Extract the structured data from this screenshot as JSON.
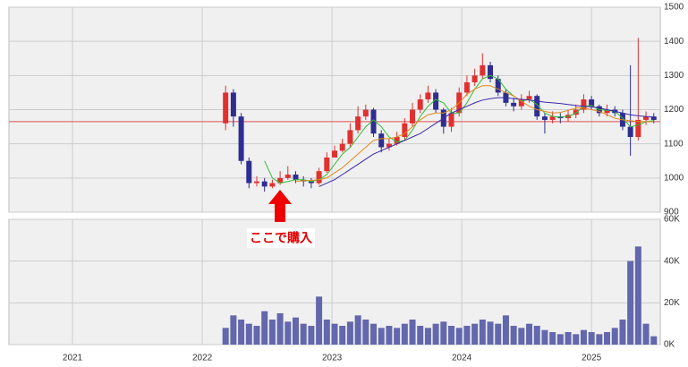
{
  "chart_data": [
    {
      "type": "candlestick",
      "xlim": [
        2020.51,
        2025.53
      ],
      "ylim": [
        900,
        1500
      ],
      "yticks": [
        900,
        1000,
        1100,
        1200,
        1300,
        1400,
        1500
      ],
      "up_color": "#e03030",
      "down_color": "#2e2e90",
      "reference_line": 1165,
      "reference_color": "#e05050",
      "annotation": "ここで購入",
      "annotation_x": 2022.6,
      "x": [
        2022.18,
        2022.24,
        2022.3,
        2022.36,
        2022.42,
        2022.48,
        2022.54,
        2022.6,
        2022.66,
        2022.72,
        2022.78,
        2022.84,
        2022.9,
        2022.96,
        2023.02,
        2023.08,
        2023.14,
        2023.2,
        2023.26,
        2023.32,
        2023.38,
        2023.44,
        2023.5,
        2023.56,
        2023.62,
        2023.68,
        2023.74,
        2023.8,
        2023.86,
        2023.92,
        2023.98,
        2024.04,
        2024.1,
        2024.16,
        2024.22,
        2024.28,
        2024.34,
        2024.4,
        2024.46,
        2024.52,
        2024.58,
        2024.64,
        2024.7,
        2024.76,
        2024.82,
        2024.88,
        2024.94,
        2025.0,
        2025.06,
        2025.12,
        2025.18,
        2025.24,
        2025.3,
        2025.36,
        2025.42,
        2025.48
      ],
      "open": [
        1160,
        1250,
        1180,
        1050,
        985,
        990,
        975,
        985,
        1000,
        1010,
        995,
        990,
        985,
        1020,
        1060,
        1080,
        1100,
        1140,
        1180,
        1200,
        1130,
        1090,
        1100,
        1120,
        1160,
        1200,
        1230,
        1250,
        1200,
        1150,
        1190,
        1250,
        1280,
        1300,
        1330,
        1290,
        1250,
        1220,
        1210,
        1230,
        1240,
        1180,
        1170,
        1180,
        1175,
        1185,
        1200,
        1230,
        1210,
        1190,
        1200,
        1190,
        1150,
        1120,
        1170,
        1180
      ],
      "high": [
        1270,
        1260,
        1190,
        1060,
        1005,
        1000,
        995,
        1020,
        1035,
        1020,
        1005,
        1000,
        1030,
        1075,
        1095,
        1115,
        1160,
        1210,
        1215,
        1205,
        1140,
        1115,
        1135,
        1175,
        1220,
        1245,
        1270,
        1260,
        1205,
        1205,
        1265,
        1300,
        1320,
        1365,
        1340,
        1300,
        1260,
        1235,
        1245,
        1255,
        1245,
        1190,
        1195,
        1190,
        1200,
        1215,
        1245,
        1240,
        1215,
        1215,
        1210,
        1200,
        1330,
        1410,
        1195,
        1190
      ],
      "low": [
        1140,
        1150,
        1040,
        970,
        975,
        960,
        970,
        980,
        995,
        985,
        975,
        970,
        980,
        1015,
        1060,
        1075,
        1090,
        1130,
        1170,
        1120,
        1075,
        1080,
        1095,
        1110,
        1150,
        1190,
        1220,
        1190,
        1130,
        1135,
        1180,
        1240,
        1270,
        1290,
        1280,
        1240,
        1210,
        1195,
        1200,
        1220,
        1170,
        1130,
        1160,
        1160,
        1165,
        1175,
        1190,
        1200,
        1180,
        1180,
        1180,
        1140,
        1065,
        1110,
        1155,
        1160
      ],
      "close": [
        1250,
        1180,
        1050,
        985,
        990,
        975,
        985,
        1000,
        1010,
        995,
        990,
        985,
        1020,
        1060,
        1080,
        1100,
        1140,
        1180,
        1200,
        1130,
        1090,
        1100,
        1120,
        1160,
        1200,
        1230,
        1250,
        1200,
        1150,
        1190,
        1250,
        1280,
        1300,
        1330,
        1290,
        1250,
        1220,
        1210,
        1230,
        1240,
        1180,
        1170,
        1180,
        1175,
        1185,
        1200,
        1230,
        1210,
        1190,
        1200,
        1190,
        1150,
        1120,
        1170,
        1180,
        1170
      ],
      "series": [
        {
          "color": "#33bb33",
          "values": [
            null,
            null,
            null,
            null,
            null,
            1050,
            1000,
            985,
            990,
            995,
            995,
            990,
            995,
            1010,
            1040,
            1070,
            1090,
            1120,
            1150,
            1170,
            1150,
            1120,
            1105,
            1110,
            1140,
            1180,
            1210,
            1230,
            1220,
            1190,
            1190,
            1220,
            1260,
            1290,
            1300,
            1290,
            1260,
            1240,
            1225,
            1230,
            1215,
            1190,
            1180,
            1178,
            1180,
            1190,
            1210,
            1212,
            1200,
            1198,
            1195,
            1175,
            1150,
            1155,
            1165,
            1168
          ]
        },
        {
          "color": "#e08a20",
          "values": [
            null,
            null,
            null,
            null,
            null,
            null,
            null,
            null,
            null,
            990,
            992,
            993,
            995,
            1000,
            1015,
            1030,
            1050,
            1070,
            1090,
            1110,
            1115,
            1115,
            1120,
            1130,
            1150,
            1170,
            1185,
            1190,
            1190,
            1200,
            1220,
            1245,
            1260,
            1270,
            1270,
            1260,
            1250,
            1240,
            1225,
            1210,
            1200,
            1195,
            1190,
            1192,
            1198,
            1205,
            1205,
            1200,
            1195,
            1185,
            1175,
            1170,
            1168,
            1165,
            1165,
            1165
          ]
        },
        {
          "color": "#3a2aa8",
          "values": [
            null,
            null,
            null,
            null,
            null,
            null,
            null,
            null,
            null,
            null,
            null,
            null,
            975,
            985,
            995,
            1010,
            1025,
            1040,
            1055,
            1070,
            1080,
            1090,
            1100,
            1110,
            1120,
            1130,
            1145,
            1160,
            1175,
            1190,
            1200,
            1210,
            1220,
            1228,
            1232,
            1235,
            1235,
            1232,
            1230,
            1228,
            1225,
            1222,
            1220,
            1218,
            1215,
            1212,
            1210,
            1208,
            1205,
            1200,
            1195,
            1190,
            1185,
            1182,
            1180,
            1178
          ]
        }
      ]
    },
    {
      "type": "bar",
      "xlim": [
        2020.51,
        2025.53
      ],
      "xticks": [
        2021,
        2022,
        2023,
        2024,
        2025
      ],
      "ylim": [
        0,
        60000
      ],
      "yticks": [
        {
          "value": 0,
          "label": "0K"
        },
        {
          "value": 20000,
          "label": "20K"
        },
        {
          "value": 40000,
          "label": "40K"
        },
        {
          "value": 60000,
          "label": "60K"
        }
      ],
      "color": "#6367ad",
      "x": [
        2022.18,
        2022.24,
        2022.3,
        2022.36,
        2022.42,
        2022.48,
        2022.54,
        2022.6,
        2022.66,
        2022.72,
        2022.78,
        2022.84,
        2022.9,
        2022.96,
        2023.02,
        2023.08,
        2023.14,
        2023.2,
        2023.26,
        2023.32,
        2023.38,
        2023.44,
        2023.5,
        2023.56,
        2023.62,
        2023.68,
        2023.74,
        2023.8,
        2023.86,
        2023.92,
        2023.98,
        2024.04,
        2024.1,
        2024.16,
        2024.22,
        2024.28,
        2024.34,
        2024.4,
        2024.46,
        2024.52,
        2024.58,
        2024.64,
        2024.7,
        2024.76,
        2024.82,
        2024.88,
        2024.94,
        2025.0,
        2025.06,
        2025.12,
        2025.18,
        2025.24,
        2025.3,
        2025.36,
        2025.42,
        2025.48
      ],
      "values": [
        8000,
        14000,
        12000,
        10000,
        9000,
        16000,
        12000,
        15000,
        11000,
        13000,
        10000,
        9000,
        23000,
        12000,
        10000,
        9000,
        11000,
        14000,
        12000,
        10000,
        8000,
        9000,
        8000,
        10000,
        12000,
        9000,
        8000,
        10000,
        11000,
        9000,
        8000,
        9000,
        10000,
        12000,
        11000,
        10000,
        14000,
        9000,
        8000,
        10000,
        9000,
        7000,
        6000,
        5000,
        6000,
        5000,
        7000,
        6000,
        5000,
        6000,
        8000,
        12000,
        40000,
        47000,
        10000,
        4000
      ]
    }
  ]
}
